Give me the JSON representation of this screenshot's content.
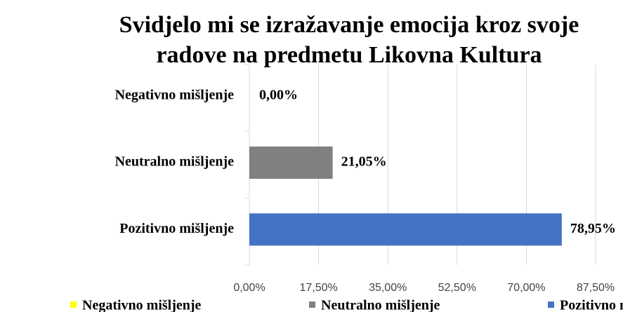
{
  "chart_data": {
    "type": "hbar",
    "title": "Svidjelo mi se izražavanje emocija kroz svoje radove na predmetu Likovna Kultura",
    "categories": [
      "Negativno mišljenje",
      "Neutralno mišljenje",
      "Pozitivno mišljenje"
    ],
    "values": [
      0,
      21.05,
      78.95
    ],
    "value_labels": [
      "0,00%",
      "21,05%",
      "78,95%"
    ],
    "colors": [
      "#ffff00",
      "#808080",
      "#4472c4"
    ],
    "xlim": [
      0,
      87.5
    ],
    "xticks": [
      {
        "value": 0,
        "label": "0,00%"
      },
      {
        "value": 17.5,
        "label": "17,50%"
      },
      {
        "value": 35,
        "label": "35,00%"
      },
      {
        "value": 52.5,
        "label": "52,50%"
      },
      {
        "value": 70,
        "label": "70,00%"
      },
      {
        "value": 87.5,
        "label": "87,50%"
      }
    ],
    "grid": true
  }
}
